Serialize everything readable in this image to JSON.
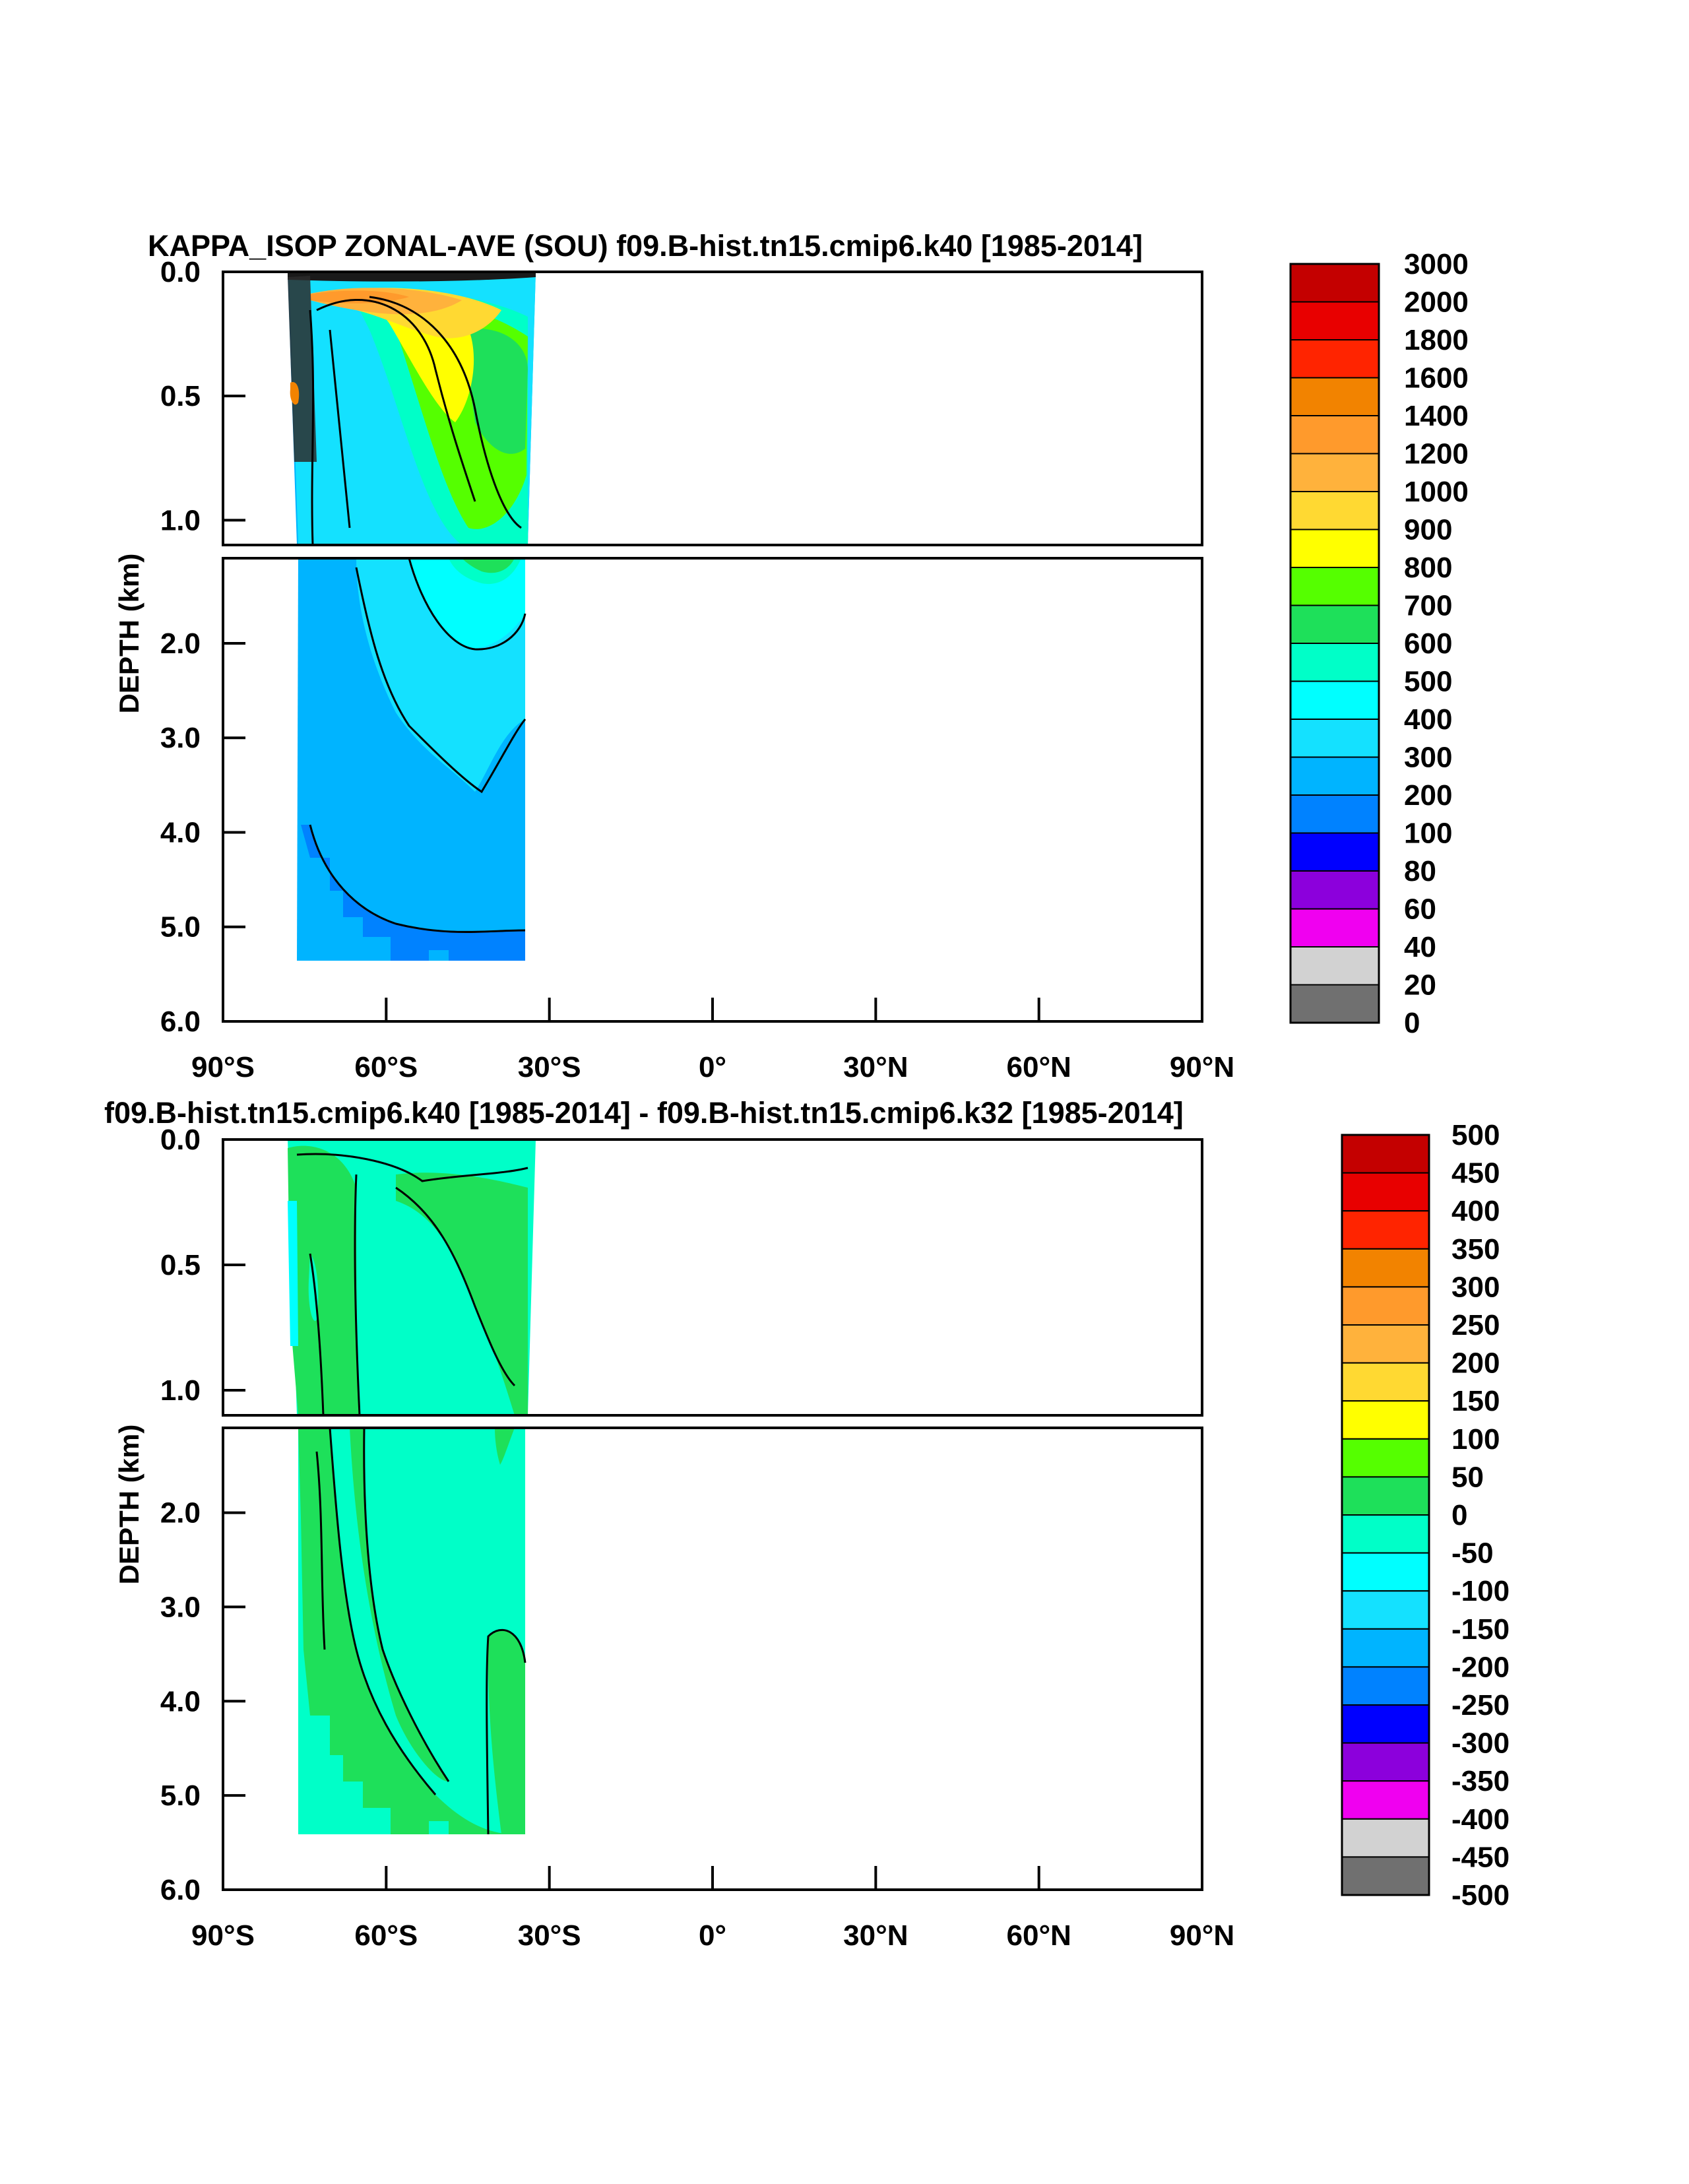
{
  "chart_data": [
    {
      "type": "heatmap",
      "title": "KAPPA_ISOP ZONAL-AVE (SOU) f09.B-hist.tn15.cmip6.k40 [1985-2014]",
      "ylabel": "DEPTH (km)",
      "xlabel": "",
      "x_ticks": [
        "90°S",
        "60°S",
        "30°S",
        "0°",
        "30°N",
        "60°N",
        "90°N"
      ],
      "x_range": [
        -90,
        90
      ],
      "upper_y_ticks": [
        "0.0",
        "0.5",
        "1.0"
      ],
      "upper_y_range": [
        0,
        1.1
      ],
      "lower_y_ticks": [
        "2.0",
        "3.0",
        "4.0",
        "5.0",
        "6.0"
      ],
      "lower_y_range": [
        1.1,
        6.0
      ],
      "colorbar_labels": [
        "3000",
        "2000",
        "1800",
        "1600",
        "1400",
        "1200",
        "1000",
        "900",
        "800",
        "700",
        "600",
        "500",
        "400",
        "300",
        "200",
        "100",
        "80",
        "60",
        "40",
        "20",
        "0"
      ],
      "colorbar_colors": [
        "#c40000",
        "#e80000",
        "#ff2400",
        "#f28300",
        "#ff9a2c",
        "#ffb23c",
        "#ffd932",
        "#ffff00",
        "#55ff00",
        "#1ee05a",
        "#00ffc8",
        "#00ffff",
        "#14e1ff",
        "#00b4ff",
        "#0082ff",
        "#0000ff",
        "#8c00dc",
        "#f000f0",
        "#d2d2d2",
        "#707070"
      ]
    },
    {
      "type": "heatmap",
      "title": "f09.B-hist.tn15.cmip6.k40 [1985-2014] - f09.B-hist.tn15.cmip6.k32 [1985-2014]",
      "ylabel": "DEPTH (km)",
      "xlabel": "",
      "x_ticks": [
        "90°S",
        "60°S",
        "30°S",
        "0°",
        "30°N",
        "60°N",
        "90°N"
      ],
      "x_range": [
        -90,
        90
      ],
      "upper_y_ticks": [
        "0.0",
        "0.5",
        "1.0"
      ],
      "upper_y_range": [
        0,
        1.1
      ],
      "lower_y_ticks": [
        "2.0",
        "3.0",
        "4.0",
        "5.0",
        "6.0"
      ],
      "lower_y_range": [
        1.1,
        6.0
      ],
      "colorbar_labels": [
        "500",
        "450",
        "400",
        "350",
        "300",
        "250",
        "200",
        "150",
        "100",
        "50",
        "0",
        "-50",
        "-100",
        "-150",
        "-200",
        "-250",
        "-300",
        "-350",
        "-400",
        "-450",
        "-500"
      ],
      "colorbar_colors": [
        "#c40000",
        "#e80000",
        "#ff2400",
        "#f28300",
        "#ff9a2c",
        "#ffb23c",
        "#ffd932",
        "#ffff00",
        "#55ff00",
        "#1ee05a",
        "#00ffc8",
        "#00ffff",
        "#14e1ff",
        "#00b4ff",
        "#0082ff",
        "#0000ff",
        "#8c00dc",
        "#f000f0",
        "#d2d2d2",
        "#707070"
      ]
    }
  ]
}
